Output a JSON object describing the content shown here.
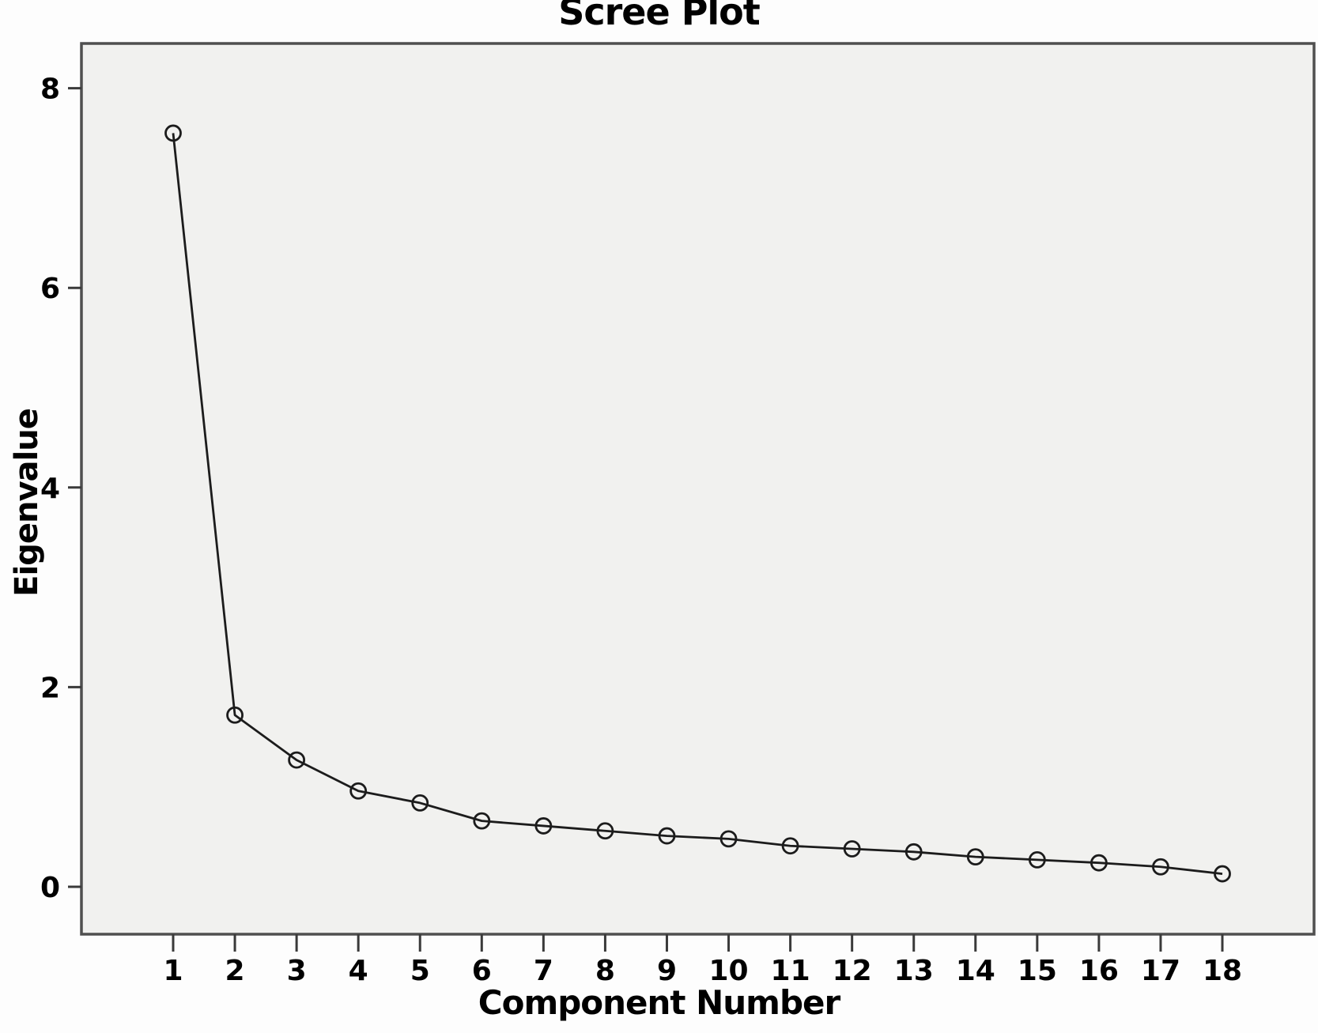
{
  "figure": {
    "title": "Scree Plot",
    "x_axis_label": "Component Number",
    "y_axis_label": "Eigenvalue"
  },
  "chart_data": {
    "type": "line",
    "title": "Scree Plot",
    "xlabel": "Component Number",
    "ylabel": "Eigenvalue",
    "x": [
      1,
      2,
      3,
      4,
      5,
      6,
      7,
      8,
      9,
      10,
      11,
      12,
      13,
      14,
      15,
      16,
      17,
      18
    ],
    "values": [
      7.55,
      1.72,
      1.27,
      0.96,
      0.84,
      0.66,
      0.61,
      0.56,
      0.51,
      0.48,
      0.41,
      0.38,
      0.35,
      0.3,
      0.27,
      0.24,
      0.2,
      0.13
    ],
    "x_tick_labels": [
      "1",
      "2",
      "3",
      "4",
      "5",
      "6",
      "7",
      "8",
      "9",
      "10",
      "11",
      "12",
      "13",
      "14",
      "15",
      "16",
      "17",
      "18"
    ],
    "y_tick_values": [
      0,
      2,
      4,
      6,
      8
    ],
    "ylim": [
      -0.48,
      8.45
    ],
    "xlim": [
      -0.49,
      19.49
    ],
    "grid": false,
    "legend": "none",
    "marker_style": "open-circle",
    "series_name": "Eigenvalue",
    "colors": {
      "line": "#1c1c1c",
      "marker_stroke": "#1c1c1c",
      "plot_background": "#f1f1ef",
      "page_background": "#fdfdfd",
      "frame_border": "#4f4f4f",
      "tick": "#3a3a3a",
      "text": "#000000"
    }
  }
}
